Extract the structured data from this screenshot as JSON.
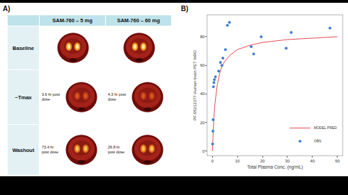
{
  "panel_a": {
    "label": "A)",
    "header": [
      "SAM-760 – 5 mg",
      "SAM-760 – 60 mg"
    ],
    "rows": [
      {
        "label": "Baseline"
      },
      {
        "label": "~Tmax",
        "notes": [
          "3.6 hr post dose",
          "4.3 hr post dose"
        ]
      },
      {
        "label": "Washout",
        "notes": [
          "73.4 hr post dose",
          "26.8 hr post dose"
        ]
      }
    ]
  },
  "panel_b": {
    "label": "B)"
  },
  "chart_data": {
    "type": "scatter",
    "x_label": "Total Plasma Conc. (ng/mL)",
    "y_label": "PF-05212377 Human brain PET %RO",
    "xlim": [
      -2,
      52
    ],
    "xticks": [
      0,
      10,
      20,
      30,
      40,
      50
    ],
    "ylim": [
      -3,
      95
    ],
    "yticks": [
      0,
      20,
      40,
      60,
      80
    ],
    "grid": false,
    "legend": "bottom right",
    "series": [
      {
        "name": "MODEL PRED",
        "type": "line",
        "color": "#e5484d",
        "line_style": "solid",
        "x": [
          0,
          0.3,
          0.6,
          1,
          1.5,
          2,
          3,
          4,
          5,
          7,
          10,
          15,
          20,
          30,
          40,
          50
        ],
        "values": [
          0,
          14,
          24,
          33,
          41,
          47,
          55,
          60,
          63,
          67,
          71,
          74,
          76,
          78,
          79,
          80
        ]
      },
      {
        "name": "OBS",
        "type": "scatter",
        "color": "#3b7dd8",
        "marker": "circle",
        "x": [
          0.1,
          0.2,
          0.3,
          0.4,
          0.6,
          0.8,
          1.2,
          2.5,
          3.2,
          3.8,
          4.2,
          5.2,
          6.0,
          6.8,
          15.5,
          16.5,
          19.5,
          29.5,
          31.5,
          47
        ],
        "values": [
          5,
          14,
          22,
          45,
          48,
          50,
          52,
          56,
          62,
          60,
          65,
          71,
          88,
          90,
          73,
          68,
          80,
          72,
          83,
          86
        ]
      }
    ]
  }
}
